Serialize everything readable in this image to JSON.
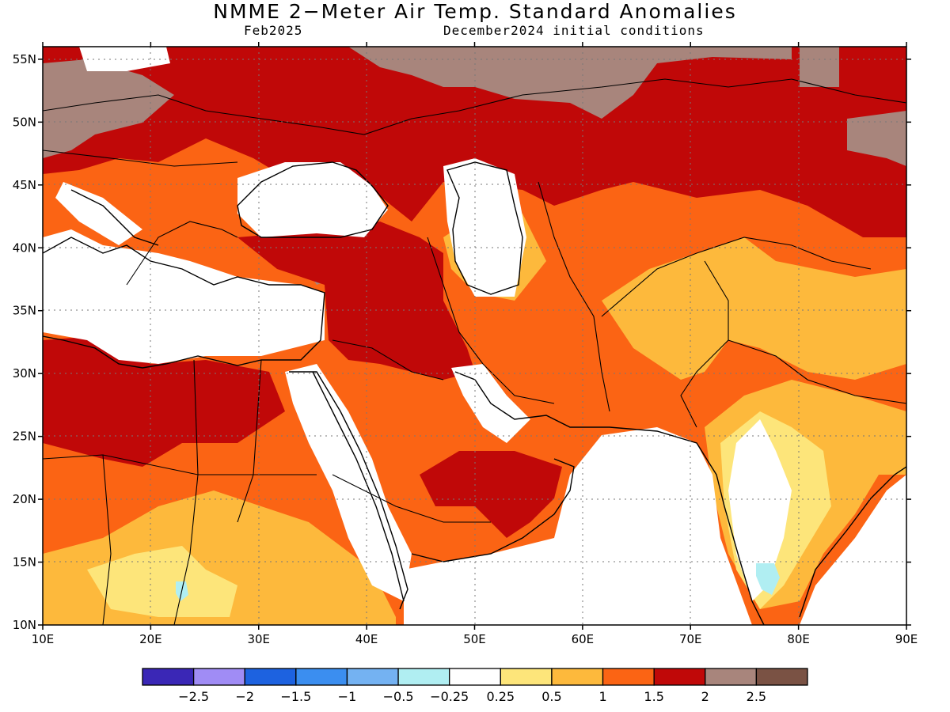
{
  "title": "NMME 2−Meter Air Temp. Standard Anomalies",
  "subtitle_left": "Feb2025",
  "subtitle_right": "December2024 initial conditions",
  "map": {
    "lon_range": [
      10,
      90
    ],
    "lat_range": [
      10,
      56
    ],
    "lon_ticks": [
      "10E",
      "20E",
      "30E",
      "40E",
      "50E",
      "60E",
      "70E",
      "80E",
      "90E"
    ],
    "lat_ticks": [
      "10N",
      "15N",
      "20N",
      "25N",
      "30N",
      "35N",
      "40N",
      "45N",
      "50N",
      "55N"
    ],
    "gridlines": "dotted"
  },
  "colorbar": {
    "colors": [
      "#3a27b6",
      "#a08cf5",
      "#1d62e0",
      "#3b8ef0",
      "#74b2f2",
      "#b0eef2",
      "#ffffff",
      "#fde57a",
      "#fdb93c",
      "#fb6414",
      "#c00808",
      "#a8857c",
      "#7a5244"
    ],
    "labels": [
      "−2.5",
      "−2",
      "−1.5",
      "−1",
      "−0.5",
      "−0.25",
      "0.25",
      "0.5",
      "1",
      "1.5",
      "2",
      "2.5"
    ]
  }
}
